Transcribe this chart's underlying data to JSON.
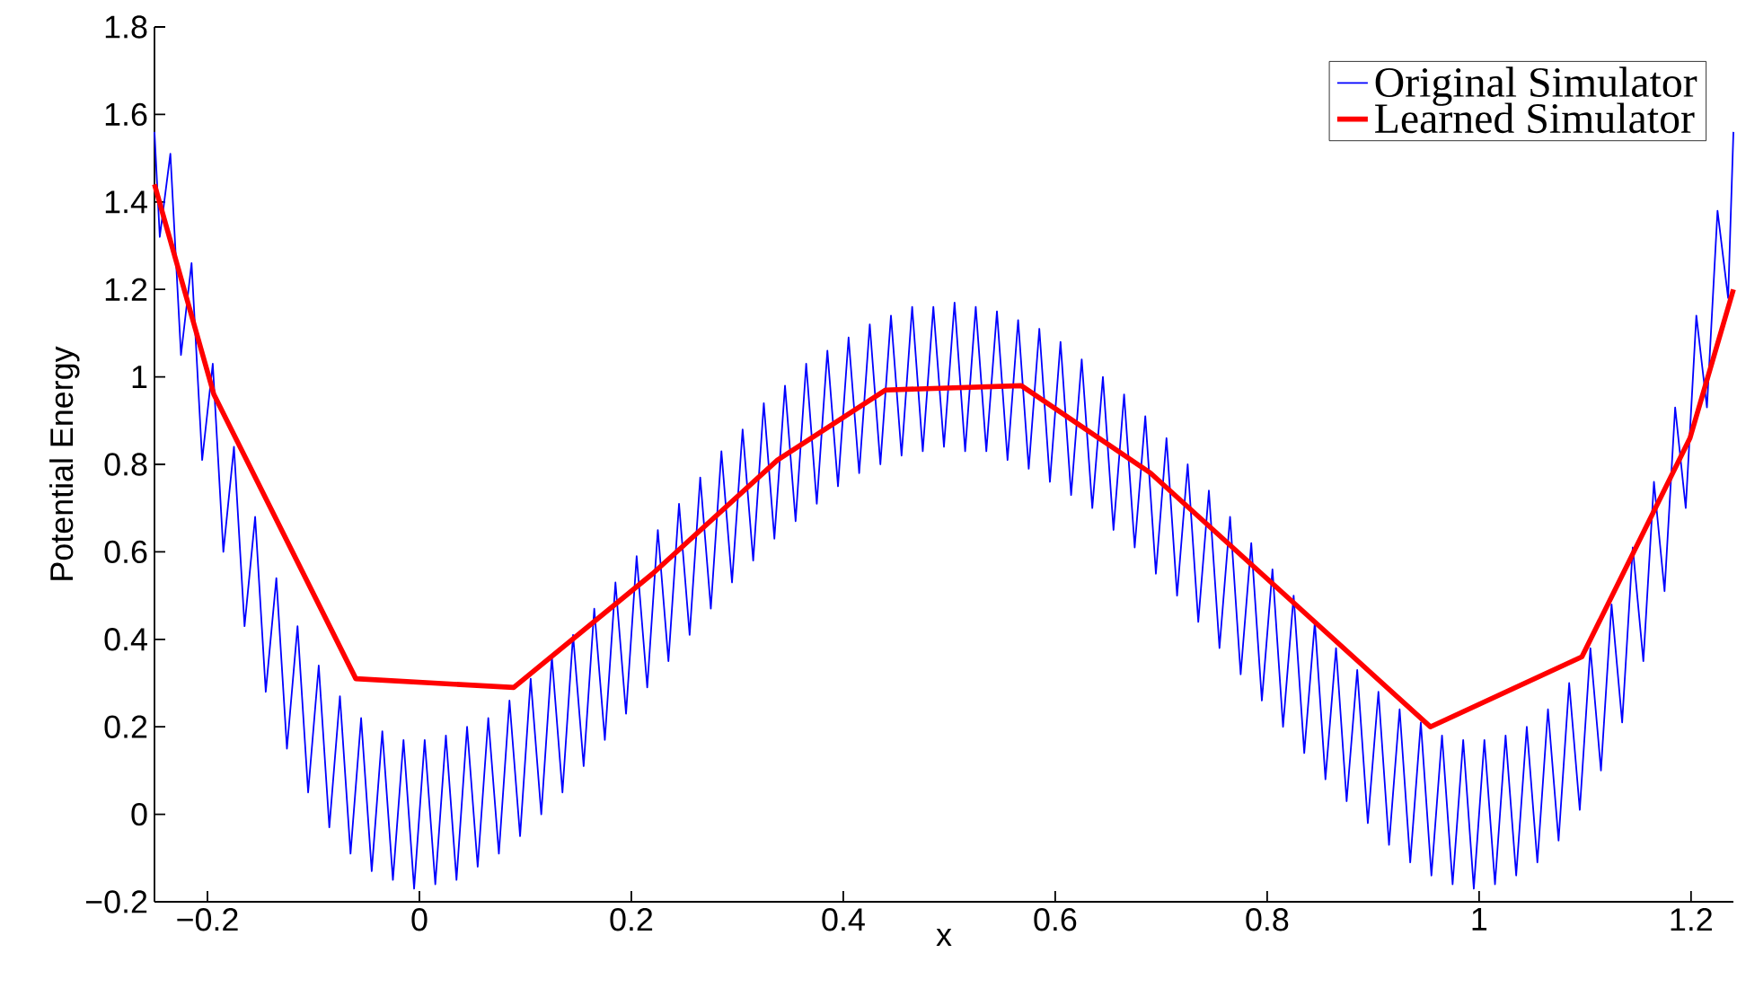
{
  "chart_data": {
    "type": "line",
    "xlabel": "x",
    "ylabel": "Potential Energy",
    "xlim": [
      -0.25,
      1.24
    ],
    "ylim": [
      -0.2,
      1.8
    ],
    "xticks": [
      {
        "value": -0.2,
        "label": "−0.2"
      },
      0,
      0.2,
      0.4,
      0.6,
      0.8,
      1,
      1.2
    ],
    "yticks": [
      {
        "value": -0.2,
        "label": "−0.2"
      },
      0,
      0.2,
      0.4,
      0.6,
      0.8,
      1,
      1.2,
      1.4,
      1.6,
      1.8
    ],
    "legend": "top right",
    "series": [
      {
        "name": "Original Simulator",
        "color": "#0000ff",
        "x": [
          -0.25,
          -0.245,
          -0.235,
          -0.225,
          -0.215,
          -0.205,
          -0.195,
          -0.185,
          -0.175,
          -0.165,
          -0.155,
          -0.145,
          -0.135,
          -0.125,
          -0.115,
          -0.105,
          -0.095,
          -0.085,
          -0.075,
          -0.065,
          -0.055,
          -0.045,
          -0.035,
          -0.025,
          -0.015,
          -0.005,
          0.005,
          0.015,
          0.025,
          0.035,
          0.045,
          0.055,
          0.065,
          0.075,
          0.085,
          0.095,
          0.105,
          0.115,
          0.125,
          0.135,
          0.145,
          0.155,
          0.165,
          0.175,
          0.185,
          0.195,
          0.205,
          0.215,
          0.225,
          0.235,
          0.245,
          0.255,
          0.265,
          0.275,
          0.285,
          0.295,
          0.305,
          0.315,
          0.325,
          0.335,
          0.345,
          0.355,
          0.365,
          0.375,
          0.385,
          0.395,
          0.405,
          0.415,
          0.425,
          0.435,
          0.445,
          0.455,
          0.465,
          0.475,
          0.485,
          0.495,
          0.505,
          0.515,
          0.525,
          0.535,
          0.545,
          0.555,
          0.565,
          0.575,
          0.585,
          0.595,
          0.605,
          0.615,
          0.625,
          0.635,
          0.645,
          0.655,
          0.665,
          0.675,
          0.685,
          0.695,
          0.705,
          0.715,
          0.725,
          0.735,
          0.745,
          0.755,
          0.765,
          0.775,
          0.785,
          0.795,
          0.805,
          0.815,
          0.825,
          0.835,
          0.845,
          0.855,
          0.865,
          0.875,
          0.885,
          0.895,
          0.905,
          0.915,
          0.925,
          0.935,
          0.945,
          0.955,
          0.965,
          0.975,
          0.985,
          0.995,
          1.005,
          1.015,
          1.025,
          1.035,
          1.045,
          1.055,
          1.065,
          1.075,
          1.085,
          1.095,
          1.105,
          1.115,
          1.125,
          1.135,
          1.145,
          1.155,
          1.165,
          1.175,
          1.185,
          1.195,
          1.205,
          1.215,
          1.225,
          1.235,
          1.24
        ],
        "values": [
          1.56,
          1.32,
          1.51,
          1.05,
          1.26,
          0.81,
          1.03,
          0.6,
          0.84,
          0.43,
          0.68,
          0.28,
          0.54,
          0.15,
          0.43,
          0.05,
          0.34,
          -0.03,
          0.27,
          -0.09,
          0.22,
          -0.13,
          0.19,
          -0.15,
          0.17,
          -0.17,
          0.17,
          -0.16,
          0.18,
          -0.15,
          0.2,
          -0.12,
          0.22,
          -0.09,
          0.26,
          -0.05,
          0.31,
          0.0,
          0.36,
          0.05,
          0.41,
          0.11,
          0.47,
          0.17,
          0.53,
          0.23,
          0.59,
          0.29,
          0.65,
          0.35,
          0.71,
          0.41,
          0.77,
          0.47,
          0.83,
          0.53,
          0.88,
          0.58,
          0.94,
          0.63,
          0.98,
          0.67,
          1.03,
          0.71,
          1.06,
          0.75,
          1.09,
          0.78,
          1.12,
          0.8,
          1.14,
          0.82,
          1.16,
          0.83,
          1.16,
          0.84,
          1.17,
          0.83,
          1.16,
          0.83,
          1.15,
          0.81,
          1.13,
          0.79,
          1.11,
          0.76,
          1.08,
          0.73,
          1.04,
          0.7,
          1.0,
          0.65,
          0.96,
          0.61,
          0.91,
          0.55,
          0.86,
          0.5,
          0.8,
          0.44,
          0.74,
          0.38,
          0.68,
          0.32,
          0.62,
          0.26,
          0.56,
          0.2,
          0.5,
          0.14,
          0.44,
          0.08,
          0.38,
          0.03,
          0.33,
          -0.02,
          0.28,
          -0.07,
          0.24,
          -0.11,
          0.21,
          -0.14,
          0.18,
          -0.16,
          0.17,
          -0.17,
          0.17,
          -0.16,
          0.18,
          -0.14,
          0.2,
          -0.11,
          0.24,
          -0.06,
          0.3,
          0.01,
          0.38,
          0.1,
          0.48,
          0.21,
          0.61,
          0.35,
          0.76,
          0.51,
          0.93,
          0.7,
          1.14,
          0.93,
          1.38,
          1.18,
          1.56
        ]
      },
      {
        "name": "Learned Simulator",
        "color": "#ff0000",
        "x": [
          -0.25,
          -0.194,
          -0.06,
          0.089,
          0.22,
          0.338,
          0.44,
          0.568,
          0.69,
          0.954,
          1.097,
          1.199,
          1.24
        ],
        "values": [
          1.44,
          0.96,
          0.31,
          0.29,
          0.55,
          0.81,
          0.97,
          0.98,
          0.78,
          0.2,
          0.36,
          0.86,
          1.2
        ]
      }
    ]
  }
}
